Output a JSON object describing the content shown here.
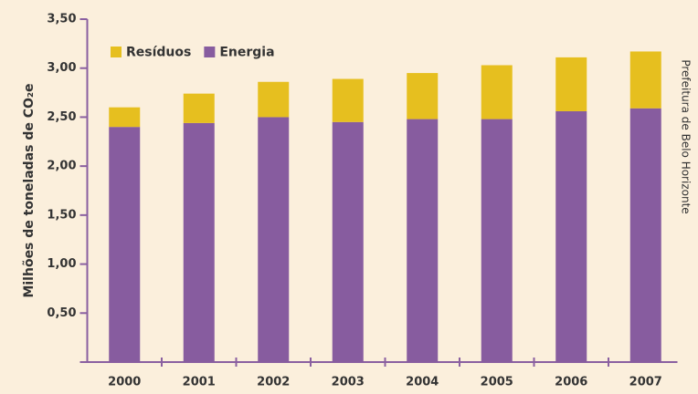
{
  "chart_data": {
    "type": "stacked_bar",
    "y_label": "Milhões de toneladas de CO₂e",
    "source": "Prefeitura de Belo Horizonte",
    "categories": [
      "2000",
      "2001",
      "2002",
      "2003",
      "2004",
      "2005",
      "2006",
      "2007"
    ],
    "series": [
      {
        "name": "Resíduos",
        "color": "#e6bf1f",
        "values": [
          0.2,
          0.3,
          0.36,
          0.44,
          0.47,
          0.55,
          0.55,
          0.58
        ]
      },
      {
        "name": "Energia",
        "color": "#875c9f",
        "values": [
          2.4,
          2.44,
          2.5,
          2.45,
          2.48,
          2.48,
          2.56,
          2.59
        ]
      }
    ],
    "ylim": [
      0,
      3.5
    ],
    "yticks": [
      {
        "value": 0.5,
        "label": "0,50"
      },
      {
        "value": 1,
        "label": "1,00"
      },
      {
        "value": 1.5,
        "label": "1,50"
      },
      {
        "value": 2,
        "label": "2,00"
      },
      {
        "value": 2.5,
        "label": "2,50"
      },
      {
        "value": 3,
        "label": "3,00"
      },
      {
        "value": 3.5,
        "label": "3,50"
      }
    ],
    "legend": "top-left",
    "grid": false
  }
}
